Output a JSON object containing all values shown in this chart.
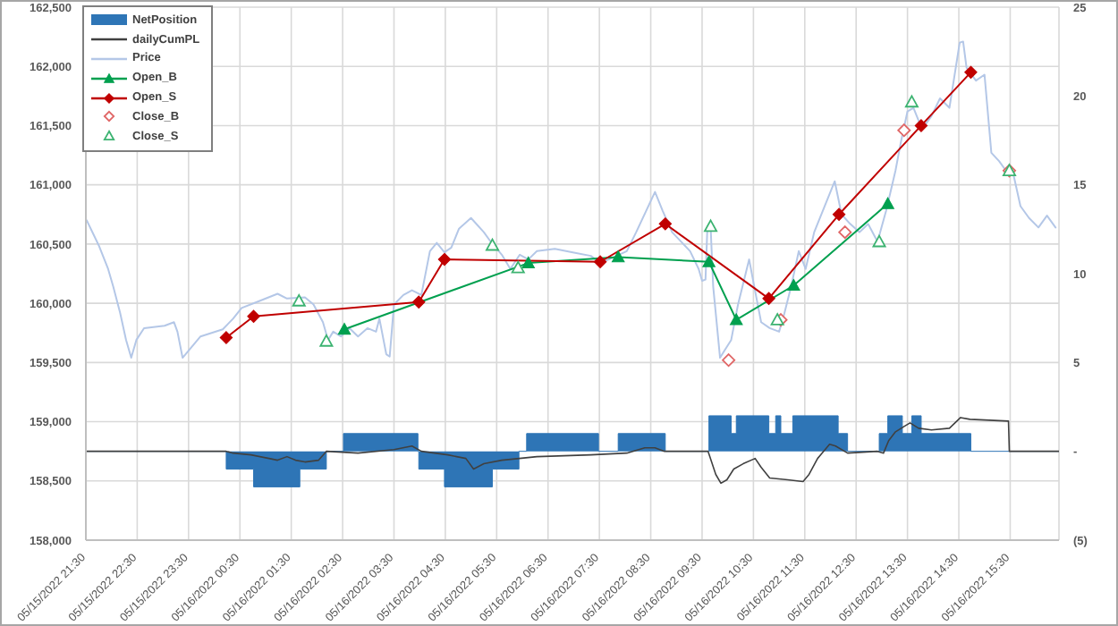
{
  "chart_data": {
    "type": "line",
    "xlim": [
      "2022-05-15T21:30",
      "2022-05-16T16:27"
    ],
    "xticks": [
      {
        "value": "2022-05-15T21:30",
        "label": "05/15/2022 21:30"
      },
      {
        "value": "2022-05-15T22:30",
        "label": "05/15/2022 22:30"
      },
      {
        "value": "2022-05-15T23:30",
        "label": "05/15/2022 23:30"
      },
      {
        "value": "2022-05-16T00:30",
        "label": "05/16/2022 00:30"
      },
      {
        "value": "2022-05-16T01:30",
        "label": "05/16/2022 01:30"
      },
      {
        "value": "2022-05-16T02:30",
        "label": "05/16/2022 02:30"
      },
      {
        "value": "2022-05-16T03:30",
        "label": "05/16/2022 03:30"
      },
      {
        "value": "2022-05-16T04:30",
        "label": "05/16/2022 04:30"
      },
      {
        "value": "2022-05-16T05:30",
        "label": "05/16/2022 05:30"
      },
      {
        "value": "2022-05-16T06:30",
        "label": "05/16/2022 06:30"
      },
      {
        "value": "2022-05-16T07:30",
        "label": "05/16/2022 07:30"
      },
      {
        "value": "2022-05-16T08:30",
        "label": "05/16/2022 08:30"
      },
      {
        "value": "2022-05-16T09:30",
        "label": "05/16/2022 09:30"
      },
      {
        "value": "2022-05-16T10:30",
        "label": "05/16/2022 10:30"
      },
      {
        "value": "2022-05-16T11:30",
        "label": "05/16/2022 11:30"
      },
      {
        "value": "2022-05-16T12:30",
        "label": "05/16/2022 12:30"
      },
      {
        "value": "2022-05-16T13:30",
        "label": "05/16/2022 13:30"
      },
      {
        "value": "2022-05-16T14:30",
        "label": "05/16/2022 14:30"
      },
      {
        "value": "2022-05-16T15:30",
        "label": "05/16/2022 15:30"
      }
    ],
    "ylim": [
      158000,
      162500
    ],
    "yticks": [
      {
        "value": 158000,
        "label": "158,000"
      },
      {
        "value": 158500,
        "label": "158,500"
      },
      {
        "value": 159000,
        "label": "159,000"
      },
      {
        "value": 159500,
        "label": "159,500"
      },
      {
        "value": 160000,
        "label": "160,000"
      },
      {
        "value": 160500,
        "label": "160,500"
      },
      {
        "value": 161000,
        "label": "161,000"
      },
      {
        "value": 161500,
        "label": "161,500"
      },
      {
        "value": 162000,
        "label": "162,000"
      },
      {
        "value": 162500,
        "label": "162,500"
      }
    ],
    "y2lim": [
      -5,
      25
    ],
    "y2ticks": [
      {
        "value": -5,
        "label": "(5)"
      },
      {
        "value": 0,
        "label": "-"
      },
      5,
      10,
      15,
      20,
      25
    ],
    "grid": true,
    "legend": "top left",
    "marker": "none",
    "series": [
      {
        "name": "NetPosition",
        "type": "area",
        "axis": "y2",
        "color": "#2e75b6",
        "x": [
          "2022-05-15T21:30",
          "2022-05-16T00:14",
          "2022-05-16T00:14",
          "2022-05-16T00:46",
          "2022-05-16T00:46",
          "2022-05-16T01:40",
          "2022-05-16T01:40",
          "2022-05-16T02:11",
          "2022-05-16T02:11",
          "2022-05-16T02:31",
          "2022-05-16T02:31",
          "2022-05-16T03:58",
          "2022-05-16T03:58",
          "2022-05-16T03:59",
          "2022-05-16T03:59",
          "2022-05-16T04:29",
          "2022-05-16T04:29",
          "2022-05-16T05:25",
          "2022-05-16T05:25",
          "2022-05-16T05:56",
          "2022-05-16T05:56",
          "2022-05-16T06:05",
          "2022-05-16T06:05",
          "2022-05-16T07:29",
          "2022-05-16T07:29",
          "2022-05-16T07:52",
          "2022-05-16T07:52",
          "2022-05-16T08:47",
          "2022-05-16T08:47",
          "2022-05-16T09:38",
          "2022-05-16T09:38",
          "2022-05-16T10:04",
          "2022-05-16T10:04",
          "2022-05-16T10:10",
          "2022-05-16T10:10",
          "2022-05-16T10:48",
          "2022-05-16T10:48",
          "2022-05-16T10:56",
          "2022-05-16T10:56",
          "2022-05-16T11:02",
          "2022-05-16T11:02",
          "2022-05-16T11:16",
          "2022-05-16T11:16",
          "2022-05-16T12:09",
          "2022-05-16T12:09",
          "2022-05-16T12:20",
          "2022-05-16T12:20",
          "2022-05-16T12:57",
          "2022-05-16T12:57",
          "2022-05-16T13:07",
          "2022-05-16T13:07",
          "2022-05-16T13:24",
          "2022-05-16T13:24",
          "2022-05-16T13:35",
          "2022-05-16T13:35",
          "2022-05-16T13:46",
          "2022-05-16T13:46",
          "2022-05-16T14:44",
          "2022-05-16T14:44",
          "2022-05-16T16:27"
        ],
        "values": [
          0,
          0,
          -1,
          -1,
          -2,
          -2,
          -1,
          -1,
          0,
          0,
          1,
          1,
          0,
          0,
          -1,
          -1,
          -2,
          -2,
          -1,
          -1,
          0,
          0,
          1,
          1,
          0,
          0,
          1,
          1,
          0,
          0,
          2,
          2,
          1,
          1,
          2,
          2,
          1,
          1,
          2,
          2,
          1,
          1,
          2,
          2,
          1,
          1,
          0,
          0,
          1,
          1,
          2,
          2,
          1,
          1,
          2,
          2,
          1,
          1,
          0,
          0
        ]
      },
      {
        "name": "dailyCumPL",
        "axis": "y2",
        "color": "#404040",
        "x": [
          "2022-05-15T21:30",
          "2022-05-16T00:14",
          "2022-05-16T00:22",
          "2022-05-16T00:43",
          "2022-05-16T01:04",
          "2022-05-16T01:14",
          "2022-05-16T01:25",
          "2022-05-16T01:35",
          "2022-05-16T01:46",
          "2022-05-16T02:02",
          "2022-05-16T02:11",
          "2022-05-16T02:48",
          "2022-05-16T03:30",
          "2022-05-16T03:51",
          "2022-05-16T04:02",
          "2022-05-16T04:33",
          "2022-05-16T04:54",
          "2022-05-16T05:03",
          "2022-05-16T05:15",
          "2022-05-16T05:36",
          "2022-05-16T06:17",
          "2022-05-16T07:20",
          "2022-05-16T08:02",
          "2022-05-16T08:23",
          "2022-05-16T08:35",
          "2022-05-16T08:46",
          "2022-05-16T09:37",
          "2022-05-16T09:46",
          "2022-05-16T09:52",
          "2022-05-16T09:59",
          "2022-05-16T10:07",
          "2022-05-16T10:18",
          "2022-05-16T10:32",
          "2022-05-16T10:39",
          "2022-05-16T10:49",
          "2022-05-16T11:10",
          "2022-05-16T11:28",
          "2022-05-16T11:35",
          "2022-05-16T11:45",
          "2022-05-16T11:59",
          "2022-05-16T12:06",
          "2022-05-16T12:20",
          "2022-05-16T12:55",
          "2022-05-16T13:02",
          "2022-05-16T13:08",
          "2022-05-16T13:16",
          "2022-05-16T13:26",
          "2022-05-16T13:33",
          "2022-05-16T13:43",
          "2022-05-16T13:58",
          "2022-05-16T14:19",
          "2022-05-16T14:32",
          "2022-05-16T14:43",
          "2022-05-16T15:28",
          "2022-05-16T15:29",
          "2022-05-16T16:27"
        ],
        "values": [
          0,
          0,
          -0.1,
          -0.2,
          -0.4,
          -0.5,
          -0.3,
          -0.5,
          -0.6,
          -0.5,
          0,
          -0.1,
          0.1,
          0.3,
          0,
          -0.2,
          -0.4,
          -1.0,
          -0.7,
          -0.5,
          -0.3,
          -0.2,
          -0.1,
          0.2,
          0.2,
          0,
          0,
          -1.3,
          -1.8,
          -1.6,
          -1.0,
          -0.7,
          -0.4,
          -0.9,
          -1.5,
          -1.6,
          -1.7,
          -1.3,
          -0.4,
          0.4,
          0.3,
          -0.1,
          0,
          -0.1,
          0.6,
          1.1,
          1.4,
          1.6,
          1.3,
          1.2,
          1.3,
          1.9,
          1.8,
          1.7,
          0,
          0
        ]
      },
      {
        "name": "Price",
        "color": "#b4c7e7",
        "x": [
          "2022-05-15T21:31",
          "2022-05-15T21:45",
          "2022-05-15T21:56",
          "2022-05-15T22:02",
          "2022-05-15T22:10",
          "2022-05-15T22:17",
          "2022-05-15T22:23",
          "2022-05-15T22:29",
          "2022-05-15T22:38",
          "2022-05-15T23:02",
          "2022-05-15T23:13",
          "2022-05-15T23:17",
          "2022-05-15T23:23",
          "2022-05-15T23:30",
          "2022-05-15T23:44",
          "2022-05-16T00:10",
          "2022-05-16T00:22",
          "2022-05-16T00:32",
          "2022-05-16T00:53",
          "2022-05-16T01:14",
          "2022-05-16T01:25",
          "2022-05-16T01:46",
          "2022-05-16T01:56",
          "2022-05-16T02:07",
          "2022-05-16T02:13",
          "2022-05-16T02:19",
          "2022-05-16T02:28",
          "2022-05-16T02:38",
          "2022-05-16T02:48",
          "2022-05-16T02:59",
          "2022-05-16T03:09",
          "2022-05-16T03:13",
          "2022-05-16T03:21",
          "2022-05-16T03:25",
          "2022-05-16T03:30",
          "2022-05-16T03:41",
          "2022-05-16T03:51",
          "2022-05-16T04:02",
          "2022-05-16T04:12",
          "2022-05-16T04:20",
          "2022-05-16T04:29",
          "2022-05-16T04:37",
          "2022-05-16T04:46",
          "2022-05-16T05:00",
          "2022-05-16T05:15",
          "2022-05-16T05:23",
          "2022-05-16T05:36",
          "2022-05-16T05:46",
          "2022-05-16T05:57",
          "2022-05-16T06:07",
          "2022-05-16T06:17",
          "2022-05-16T06:38",
          "2022-05-16T06:59",
          "2022-05-16T07:20",
          "2022-05-16T07:31",
          "2022-05-16T07:41",
          "2022-05-16T08:02",
          "2022-05-16T08:13",
          "2022-05-16T08:35",
          "2022-05-16T08:44",
          "2022-05-16T08:55",
          "2022-05-16T09:16",
          "2022-05-16T09:26",
          "2022-05-16T09:30",
          "2022-05-16T09:34",
          "2022-05-16T09:36",
          "2022-05-16T09:40",
          "2022-05-16T09:43",
          "2022-05-16T09:51",
          "2022-05-16T09:57",
          "2022-05-16T10:04",
          "2022-05-16T10:12",
          "2022-05-16T10:25",
          "2022-05-16T10:31",
          "2022-05-16T10:39",
          "2022-05-16T10:49",
          "2022-05-16T11:00",
          "2022-05-16T11:06",
          "2022-05-16T11:14",
          "2022-05-16T11:23",
          "2022-05-16T11:31",
          "2022-05-16T11:41",
          "2022-05-16T12:05",
          "2022-05-16T12:13",
          "2022-05-16T12:23",
          "2022-05-16T12:34",
          "2022-05-16T12:44",
          "2022-05-16T12:55",
          "2022-05-16T13:05",
          "2022-05-16T13:16",
          "2022-05-16T13:22",
          "2022-05-16T13:30",
          "2022-05-16T13:37",
          "2022-05-16T13:47",
          "2022-05-16T13:58",
          "2022-05-16T14:08",
          "2022-05-16T14:19",
          "2022-05-16T14:31",
          "2022-05-16T14:35",
          "2022-05-16T14:39",
          "2022-05-16T14:50",
          "2022-05-16T15:00",
          "2022-05-16T15:08",
          "2022-05-16T15:17",
          "2022-05-16T15:25",
          "2022-05-16T15:34",
          "2022-05-16T15:42",
          "2022-05-16T15:52",
          "2022-05-16T16:03",
          "2022-05-16T16:13",
          "2022-05-16T16:23"
        ],
        "values": [
          160700,
          160490,
          160290,
          160140,
          159920,
          159690,
          159540,
          159690,
          159790,
          159810,
          159840,
          159760,
          159540,
          159600,
          159720,
          159780,
          159870,
          159960,
          160020,
          160080,
          160040,
          160050,
          159990,
          159840,
          159690,
          159760,
          159720,
          159790,
          159720,
          159790,
          159760,
          159870,
          159570,
          159550,
          159990,
          160070,
          160110,
          160070,
          160440,
          160510,
          160430,
          160470,
          160630,
          160720,
          160600,
          160520,
          160410,
          160290,
          160410,
          160370,
          160440,
          160460,
          160430,
          160400,
          160340,
          160370,
          160440,
          160600,
          160940,
          160780,
          160600,
          160440,
          160290,
          160190,
          160200,
          160600,
          160640,
          160140,
          159540,
          159610,
          159690,
          159990,
          160370,
          160140,
          159840,
          159790,
          159760,
          159910,
          160140,
          160440,
          160290,
          160600,
          161030,
          160750,
          160670,
          160600,
          160670,
          160520,
          160780,
          161120,
          161350,
          161620,
          161650,
          161470,
          161580,
          161730,
          161650,
          162200,
          162210,
          161990,
          161880,
          161930,
          161270,
          161200,
          161120,
          161080,
          160820,
          160720,
          160640,
          160740,
          160640
        ]
      },
      {
        "name": "Open_B",
        "marker": "triangle",
        "color": "#00a04f",
        "x": [
          "2022-05-16T02:32",
          "2022-05-16T06:07",
          "2022-05-16T07:52",
          "2022-05-16T09:38",
          "2022-05-16T10:10",
          "2022-05-16T11:17",
          "2022-05-16T13:07"
        ],
        "values": [
          159780,
          160340,
          160390,
          160350,
          159860,
          160150,
          160840
        ]
      },
      {
        "name": "Open_S",
        "marker": "diamond",
        "color": "#c00000",
        "x": [
          "2022-05-16T00:14",
          "2022-05-16T00:46",
          "2022-05-16T03:59",
          "2022-05-16T04:29",
          "2022-05-16T07:31",
          "2022-05-16T08:47",
          "2022-05-16T10:48",
          "2022-05-16T12:10",
          "2022-05-16T13:46",
          "2022-05-16T14:44"
        ],
        "values": [
          159710,
          159890,
          160010,
          160370,
          160350,
          160670,
          160040,
          160750,
          161500,
          161950
        ]
      },
      {
        "name": "Close_B",
        "type": "scatter",
        "marker": "diamond",
        "color": "#e06666",
        "x": [
          "2022-05-16T10:01",
          "2022-05-16T11:02",
          "2022-05-16T12:17",
          "2022-05-16T13:26",
          "2022-05-16T15:29"
        ],
        "values": [
          159520,
          159860,
          160600,
          161460,
          161120
        ]
      },
      {
        "name": "Close_S",
        "type": "scatter",
        "marker": "triangle",
        "color": "#3cb371",
        "x": [
          "2022-05-16T01:39",
          "2022-05-16T02:11",
          "2022-05-16T05:25",
          "2022-05-16T05:55",
          "2022-05-16T09:40",
          "2022-05-16T10:58",
          "2022-05-16T12:57",
          "2022-05-16T13:35",
          "2022-05-16T15:29"
        ],
        "values": [
          160020,
          159680,
          160490,
          160300,
          160650,
          159860,
          160520,
          161700,
          161120
        ]
      }
    ]
  }
}
